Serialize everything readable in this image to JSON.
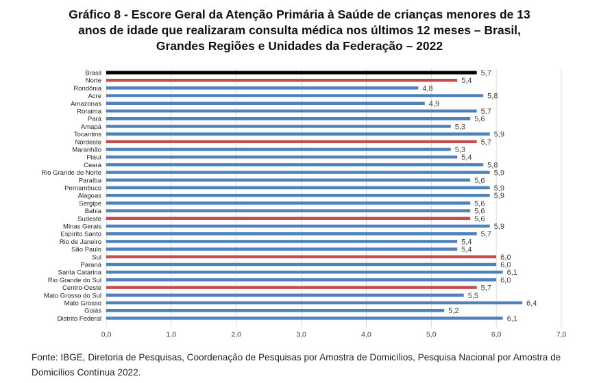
{
  "title_lines": [
    "Gráfico 8 - Escore Geral da Atenção Primária à Saúde de crianças menores de 13",
    "anos de idade que realizaram consulta médica nos últimos 12 meses – Brasil,",
    "Grandes Regiões e Unidades da Federação – 2022"
  ],
  "source_text": "Fonte: IBGE, Diretoria de Pesquisas, Coordenação de Pesquisas por Amostra de Domicílios, Pesquisa Nacional por Amostra de Domicílios Contínua 2022.",
  "colors": {
    "brasil": "#000000",
    "regiao": "#c0504d",
    "uf": "#4f81bd",
    "grid": "#d9d9d9",
    "text": "#404040"
  },
  "chart_data": {
    "type": "bar",
    "orientation": "horizontal",
    "xlim": [
      0,
      7
    ],
    "xticks": [
      "0,0",
      "1,0",
      "2,0",
      "3,0",
      "4,0",
      "5,0",
      "6,0",
      "7,0"
    ],
    "grid": true,
    "categories": [
      "Brasil",
      "Norte",
      "Rondônia",
      "Acre",
      "Amazonas",
      "Roraima",
      "Pará",
      "Amapá",
      "Tocantins",
      "Nordeste",
      "Maranhão",
      "Piauí",
      "Ceará",
      "Rio Grande do Norte",
      "Paraíba",
      "Pernambuco",
      "Alagoas",
      "Sergipe",
      "Bahia",
      "Sudeste",
      "Minas Gerais",
      "Espírito Santo",
      "Rio de Janeiro",
      "São Paulo",
      "Sul",
      "Paraná",
      "Santa Catarina",
      "Rio Grande do Sul",
      "Centro-Oeste",
      "Mato Grosso do Sul",
      "Mato Grosso",
      "Goiás",
      "Distrito Federal"
    ],
    "values": [
      5.7,
      5.4,
      4.8,
      5.8,
      4.9,
      5.7,
      5.6,
      5.3,
      5.9,
      5.7,
      5.3,
      5.4,
      5.8,
      5.9,
      5.6,
      5.9,
      5.9,
      5.6,
      5.6,
      5.6,
      5.9,
      5.7,
      5.4,
      5.4,
      6.0,
      6.0,
      6.1,
      6.0,
      5.7,
      5.5,
      6.4,
      5.2,
      6.1
    ],
    "labels": [
      "5,7",
      "5,4",
      "4,8",
      "5,8",
      "4,9",
      "5,7",
      "5,6",
      "5,3",
      "5,9",
      "5,7",
      "5,3",
      "5,4",
      "5,8",
      "5,9",
      "5,6",
      "5,9",
      "5,9",
      "5,6",
      "5,6",
      "5,6",
      "5,9",
      "5,7",
      "5,4",
      "5,4",
      "6,0",
      "6,0",
      "6,1",
      "6,0",
      "5,7",
      "5,5",
      "6,4",
      "5,2",
      "6,1"
    ],
    "groups": [
      "brasil",
      "regiao",
      "uf",
      "uf",
      "uf",
      "uf",
      "uf",
      "uf",
      "uf",
      "regiao",
      "uf",
      "uf",
      "uf",
      "uf",
      "uf",
      "uf",
      "uf",
      "uf",
      "uf",
      "regiao",
      "uf",
      "uf",
      "uf",
      "uf",
      "regiao",
      "uf",
      "uf",
      "uf",
      "regiao",
      "uf",
      "uf",
      "uf",
      "uf"
    ]
  }
}
